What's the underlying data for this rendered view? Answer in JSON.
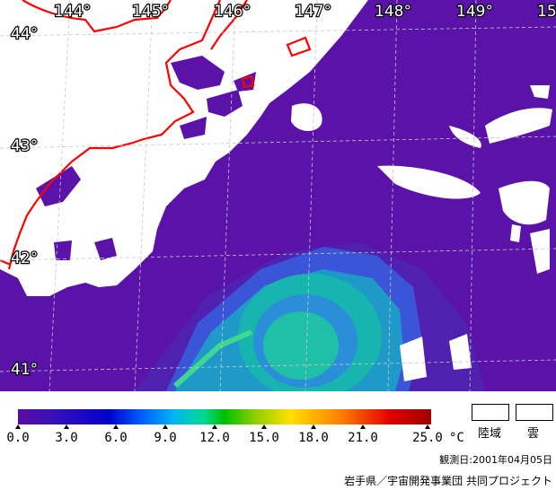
{
  "map": {
    "longitude_labels": [
      "144°",
      "145°",
      "146°",
      "147°",
      "148°",
      "149°",
      "15"
    ],
    "latitude_labels": [
      "44°",
      "43°",
      "42°",
      "41°"
    ],
    "colors": {
      "sea": "#5a12a8",
      "land_cloud": "#ffffff",
      "coastline": "#ff0000",
      "gridline": "#c8c8c8",
      "warm_eddy_inner": "#00b8c8",
      "warm_eddy_outer": "#2f7fff"
    }
  },
  "legend": {
    "tick_labels": [
      "0.0",
      "3.0",
      "6.0",
      "9.0",
      "12.0",
      "15.0",
      "18.0",
      "21.0",
      "25.0"
    ],
    "unit": "°C",
    "land_label": "陸域",
    "cloud_label": "雲",
    "observation_date": "観測日:2001年04月05日",
    "credit": "岩手県／宇宙開発事業団 共同プロジェクト"
  }
}
